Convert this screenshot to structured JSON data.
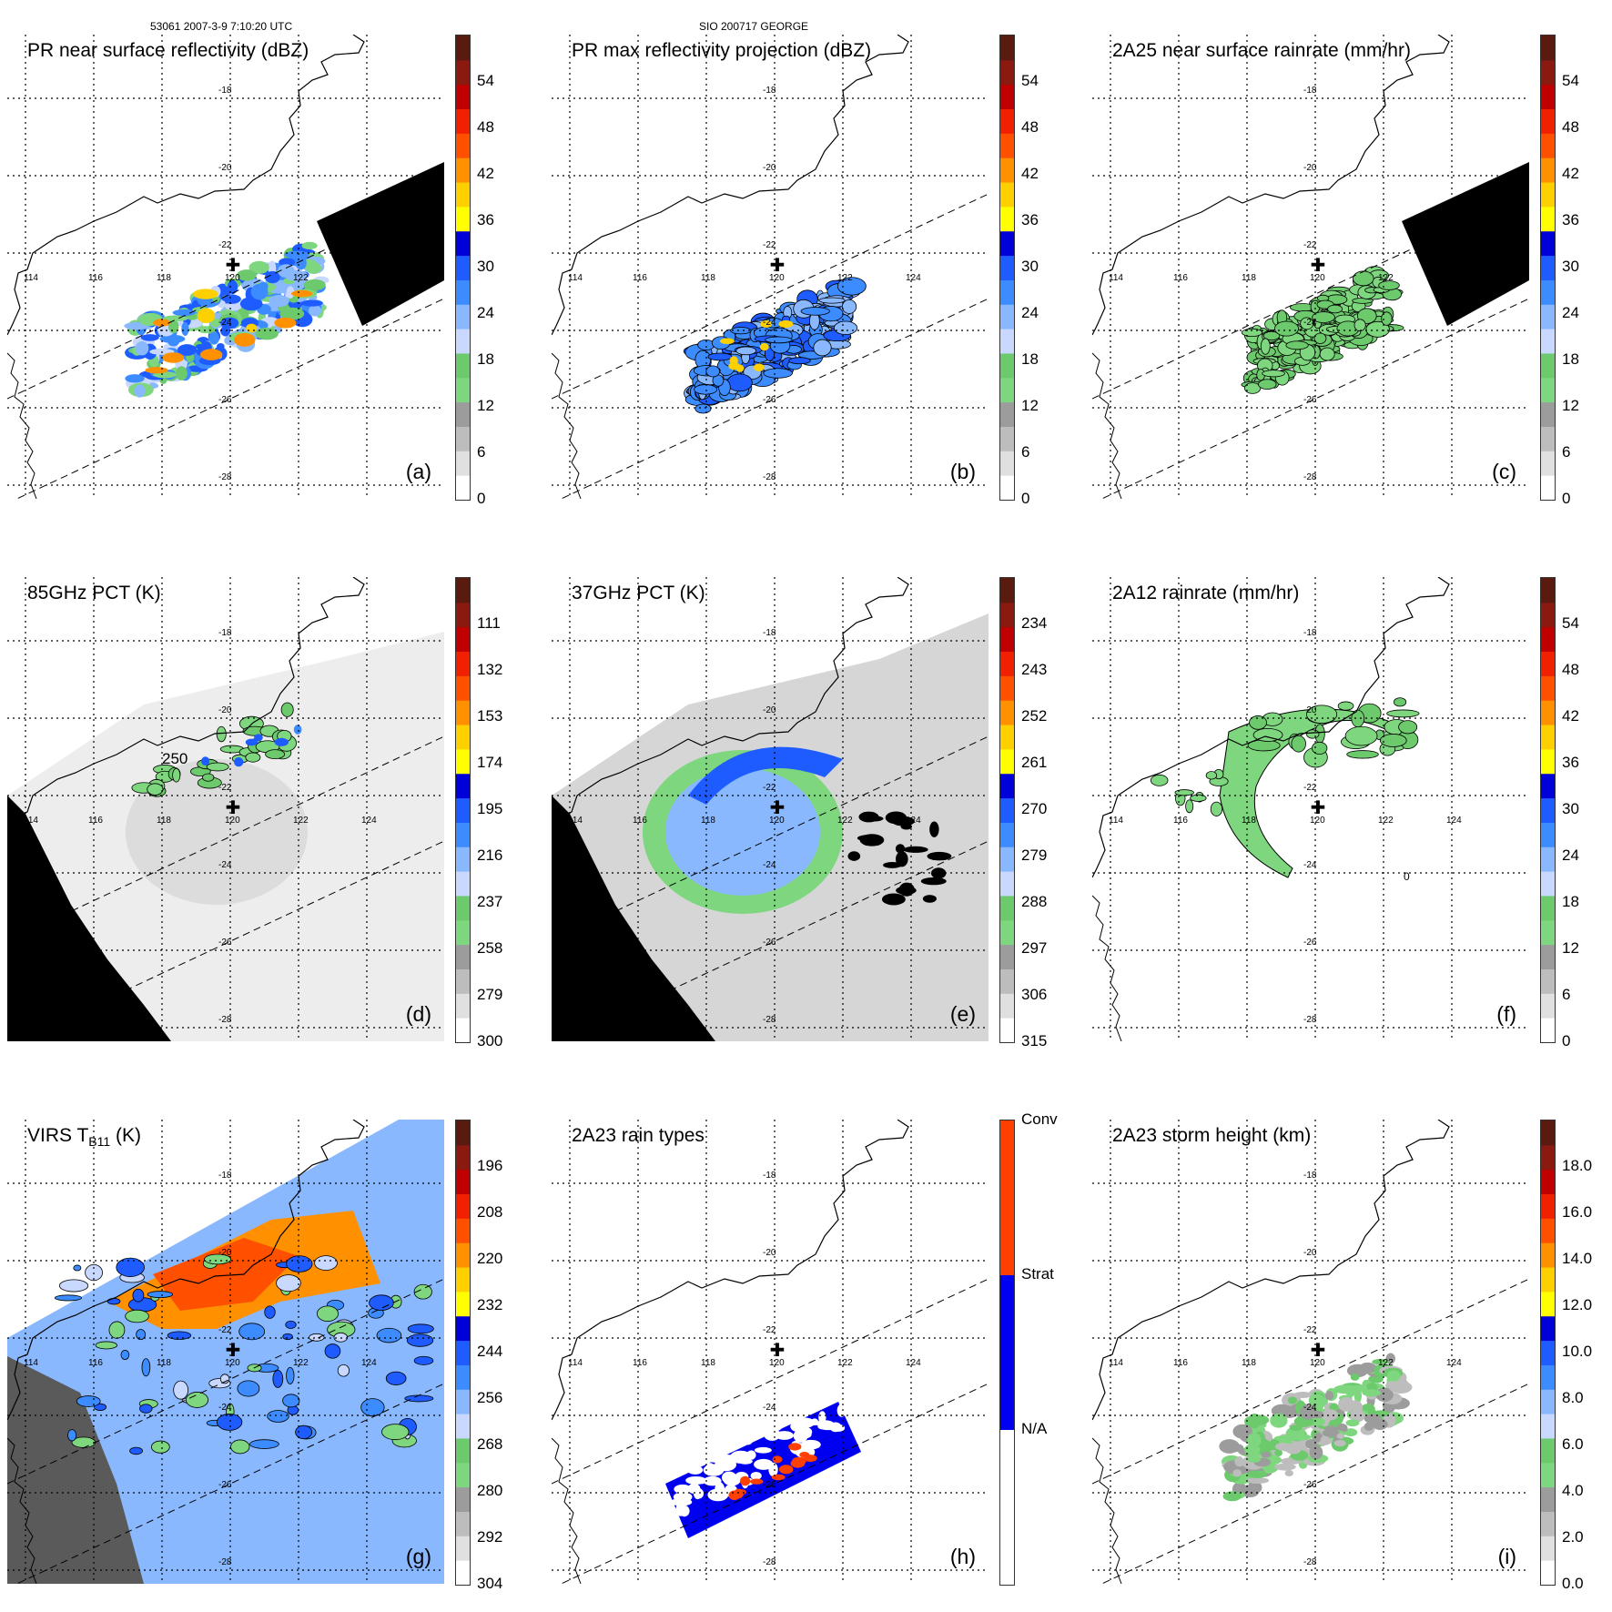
{
  "header": {
    "left": "53061 2007-3-9 7:10:20 UTC",
    "center": "SIO 200717 GEORGE"
  },
  "lat_labels": [
    "-18",
    "-20",
    "-22",
    "-24",
    "-26",
    "-28"
  ],
  "lon_labels": [
    "116",
    "118",
    "120",
    "122",
    "124"
  ],
  "lon_first_label": "114",
  "panels": [
    {
      "id": "a",
      "title": "PR near surface reflectivity (dBZ)",
      "label": "(a)",
      "colorbar": {
        "ticks": [
          "54",
          "48",
          "42",
          "36",
          "30",
          "24",
          "18",
          "12",
          "6",
          "0"
        ]
      },
      "swath": "pr",
      "black_wedge": true,
      "fill": "pr_dbz"
    },
    {
      "id": "b",
      "title": "PR max reflectivity projection (dBZ)",
      "label": "(b)",
      "colorbar": {
        "ticks": [
          "54",
          "48",
          "42",
          "36",
          "30",
          "24",
          "18",
          "12",
          "6",
          "0"
        ]
      },
      "swath": "pr",
      "black_wedge": false,
      "fill": "pr_max"
    },
    {
      "id": "c",
      "title": "2A25 near surface rainrate (mm/hr)",
      "label": "(c)",
      "colorbar": {
        "ticks": [
          "54",
          "48",
          "42",
          "36",
          "30",
          "24",
          "18",
          "12",
          "6",
          "0"
        ]
      },
      "swath": "pr",
      "black_wedge": true,
      "fill": "rain_green"
    },
    {
      "id": "d",
      "title": "85GHz PCT (K)",
      "label": "(d)",
      "colorbar": {
        "ticks": [
          "111",
          "132",
          "153",
          "174",
          "195",
          "216",
          "237",
          "258",
          "279",
          "300"
        ]
      },
      "swath": "tmi",
      "fill": "pct85",
      "contour_label": "250"
    },
    {
      "id": "e",
      "title": "37GHz PCT (K)",
      "label": "(e)",
      "colorbar": {
        "ticks": [
          "234",
          "243",
          "252",
          "261",
          "270",
          "279",
          "288",
          "297",
          "306",
          "315"
        ]
      },
      "swath": "tmi",
      "fill": "pct37"
    },
    {
      "id": "f",
      "title": "2A12 rainrate (mm/hr)",
      "label": "(f)",
      "colorbar": {
        "ticks": [
          "54",
          "48",
          "42",
          "36",
          "30",
          "24",
          "18",
          "12",
          "6",
          "0"
        ]
      },
      "swath": "none",
      "fill": "tmi_rain",
      "contour_label": "0"
    },
    {
      "id": "g",
      "title_main": "VIRS T",
      "title_sub": "B11",
      "title_tail": " (K)",
      "label": "(g)",
      "colorbar": {
        "ticks": [
          "196",
          "208",
          "220",
          "232",
          "244",
          "256",
          "268",
          "280",
          "292",
          "304"
        ]
      },
      "swath": "virs",
      "fill": "virs"
    },
    {
      "id": "h",
      "title": "2A23 rain types",
      "label": "(h)",
      "colorbar": {
        "type_labels": [
          "Conv",
          "Strat",
          "N/A"
        ]
      },
      "swath": "pr",
      "fill": "raintype"
    },
    {
      "id": "i",
      "title": "2A23 storm height (km)",
      "label": "(i)",
      "colorbar": {
        "ticks": [
          "18.0",
          "16.0",
          "14.0",
          "12.0",
          "10.0",
          "8.0",
          "6.0",
          "4.0",
          "2.0",
          "0.0"
        ]
      },
      "swath": "pr",
      "fill": "height"
    }
  ],
  "colorscale": [
    "#ffffff",
    "#e0e0e0",
    "#bdbdbd",
    "#9c9c9c",
    "#7ed67e",
    "#6cc96c",
    "#c8d8ff",
    "#8ab8ff",
    "#3c8cff",
    "#1e5cff",
    "#0000d8",
    "#ffff00",
    "#ffd000",
    "#ff9000",
    "#ff5000",
    "#f02000",
    "#c00000",
    "#8a1a10",
    "#5a1a10"
  ],
  "raintype_colors": {
    "conv": "#ff4000",
    "strat": "#0000f0",
    "na": "#ffffff"
  }
}
